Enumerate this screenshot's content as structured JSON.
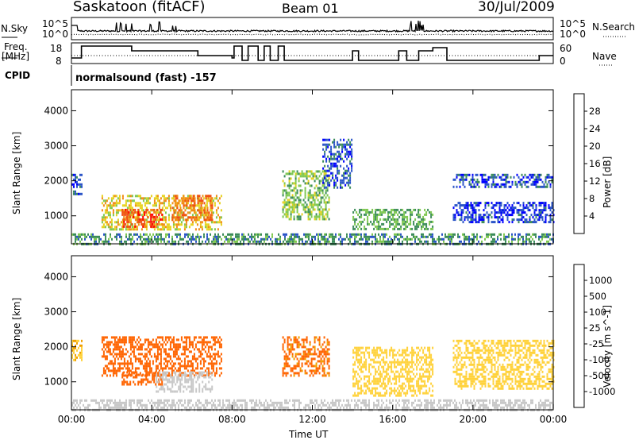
{
  "header": {
    "station": "Saskatoon (fitACF)",
    "beam": "Beam 01",
    "date": "30/Jul/2009"
  },
  "side_labels": {
    "nsky": "N.Sky",
    "nsearch": "N.Search",
    "freq_line1": "Freq.",
    "freq_line2": "[MHz]",
    "nave": "Nave",
    "cpid": "CPID"
  },
  "cpid_text": "normalsound (fast) -157",
  "panels": {
    "noise_left_ticks": [
      "10^5",
      "10^0"
    ],
    "noise_right_ticks": [
      "10^5",
      "10^0"
    ],
    "freq_left_ticks": [
      "18",
      "8"
    ],
    "nave_right_ticks": [
      "60",
      "0"
    ]
  },
  "colors": {
    "power": [
      "#0000ff",
      "#2b55c8",
      "#3c8c5a",
      "#7ec850",
      "#e6d21e",
      "#f08c14",
      "#f05014",
      "#ff0000"
    ],
    "velocity": [
      "#ff0000",
      "#ff6400",
      "#f0a000",
      "#ffd23c",
      "#c8c8c8",
      "#64c850",
      "#3c8c5a",
      "#2850c8",
      "#0000ff"
    ]
  },
  "chart_data": [
    {
      "type": "heatmap",
      "title": "",
      "xlabel": "Time UT",
      "ylabel": "Slant Range [km]",
      "xlim": [
        "00:00",
        "24:00"
      ],
      "ylim": [
        200,
        4600
      ],
      "x_ticks": [
        "00:00",
        "04:00",
        "08:00",
        "12:00",
        "16:00",
        "20:00",
        "00:00"
      ],
      "y_ticks": [
        "4000",
        "3000",
        "2000",
        "1000"
      ],
      "colorbar_label": "Power [dB]",
      "colorbar_ticks": [
        "28",
        "24",
        "20",
        "16",
        "12",
        "8",
        "4"
      ],
      "colorbar_range": [
        0,
        32
      ],
      "regions": [
        {
          "t0": 0.0,
          "t1": 0.5,
          "r0": 1600,
          "r1": 2200,
          "level": 6
        },
        {
          "t0": 1.5,
          "t1": 7.5,
          "r0": 600,
          "r1": 1600,
          "level": 18
        },
        {
          "t0": 2.5,
          "t1": 4.5,
          "r0": 700,
          "r1": 1200,
          "level": 26
        },
        {
          "t0": 5.0,
          "t1": 7.0,
          "r0": 900,
          "r1": 1600,
          "level": 24
        },
        {
          "t0": 10.5,
          "t1": 12.8,
          "r0": 900,
          "r1": 2300,
          "level": 14
        },
        {
          "t0": 12.5,
          "t1": 14.0,
          "r0": 1800,
          "r1": 3200,
          "level": 6
        },
        {
          "t0": 14.0,
          "t1": 18.0,
          "r0": 600,
          "r1": 1200,
          "level": 12
        },
        {
          "t0": 19.0,
          "t1": 24.0,
          "r0": 1800,
          "r1": 2200,
          "level": 6
        },
        {
          "t0": 19.0,
          "t1": 24.0,
          "r0": 800,
          "r1": 1400,
          "level": 5
        },
        {
          "t0": 0.0,
          "t1": 24.0,
          "r0": 200,
          "r1": 500,
          "level": 10
        }
      ]
    },
    {
      "type": "heatmap",
      "title": "",
      "xlabel": "Time UT",
      "ylabel": "Slant Range [km]",
      "xlim": [
        "00:00",
        "24:00"
      ],
      "ylim": [
        200,
        4600
      ],
      "x_ticks": [
        "00:00",
        "04:00",
        "08:00",
        "12:00",
        "16:00",
        "20:00",
        "00:00"
      ],
      "y_ticks": [
        "4000",
        "3000",
        "2000",
        "1000"
      ],
      "colorbar_label": "Velocity [m s^-1]",
      "colorbar_ticks": [
        "1000",
        "500",
        "100",
        "25",
        "-25",
        "-100",
        "-500",
        "-1000"
      ],
      "regions": [
        {
          "t0": 0.0,
          "t1": 0.5,
          "r0": 1600,
          "r1": 2200,
          "level": -25
        },
        {
          "t0": 1.5,
          "t1": 7.5,
          "r0": 1200,
          "r1": 2300,
          "level": -300
        },
        {
          "t0": 2.5,
          "t1": 4.5,
          "r0": 900,
          "r1": 1300,
          "level": -300
        },
        {
          "t0": 4.2,
          "t1": 7.0,
          "r0": 700,
          "r1": 1300,
          "level": 60
        },
        {
          "t0": 10.5,
          "t1": 12.8,
          "r0": 1200,
          "r1": 2300,
          "level": -200
        },
        {
          "t0": 14.0,
          "t1": 18.0,
          "r0": 600,
          "r1": 2000,
          "level": 0
        },
        {
          "t0": 19.0,
          "t1": 24.0,
          "r0": 800,
          "r1": 2200,
          "level": 0
        },
        {
          "t0": 0.0,
          "t1": 24.0,
          "r0": 200,
          "r1": 500,
          "level": 60
        }
      ]
    }
  ]
}
